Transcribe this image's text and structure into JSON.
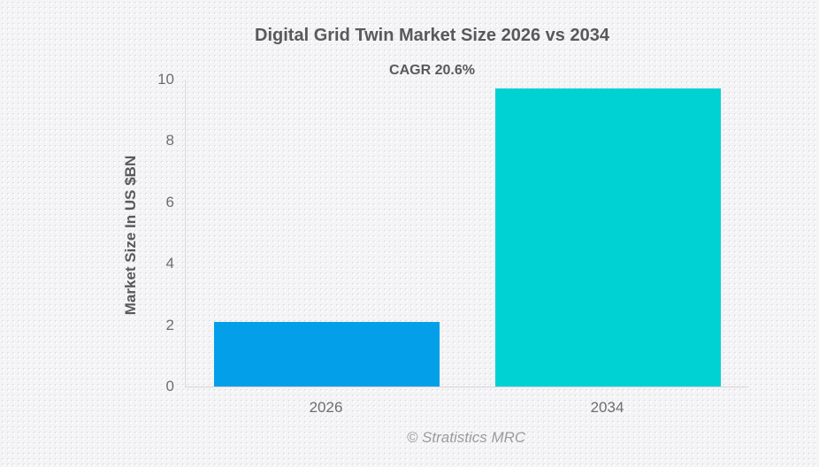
{
  "chart_data": {
    "type": "bar",
    "title": "Digital Grid Twin Market Size 2026 vs 2034",
    "subtitle": "CAGR 20.6%",
    "ylabel": "Market Size In US $BN",
    "xlabel": "",
    "categories": [
      "2026",
      "2034"
    ],
    "values": [
      2.1,
      9.7
    ],
    "bar_colors": [
      "#049fe9",
      "#00d1d3"
    ],
    "ylim": [
      0,
      10
    ],
    "yticks": [
      0,
      2,
      4,
      6,
      8,
      10
    ],
    "grid": false,
    "legend": "none"
  },
  "footer": {
    "attribution": "© Stratistics MRC"
  }
}
